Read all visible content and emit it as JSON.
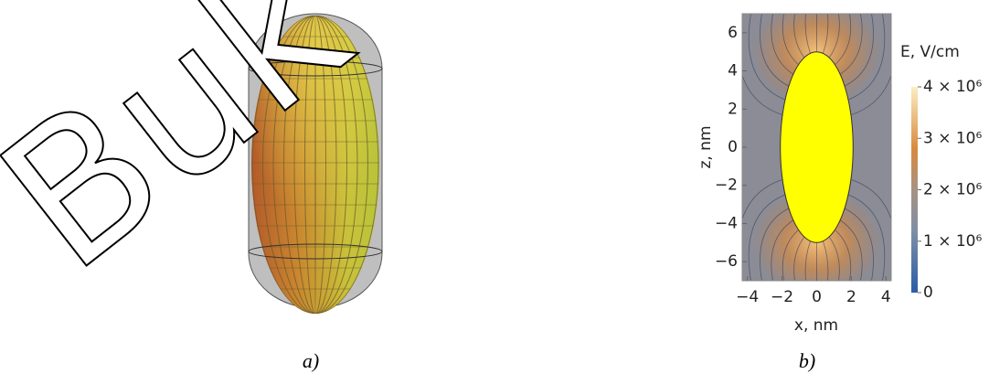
{
  "watermark": "Buk",
  "panels": {
    "a": "a)",
    "b": "b)"
  },
  "chart_data": {
    "type": "density",
    "x_label": "x, nm",
    "y_label": "z, nm",
    "xlim": [
      -4.3,
      4.3
    ],
    "ylim": [
      -7,
      7
    ],
    "xticks": [
      {
        "value": -4,
        "label": "−4"
      },
      {
        "value": -2,
        "label": "−2"
      },
      0,
      2,
      4
    ],
    "yticks": [
      {
        "value": -6,
        "label": "−6"
      },
      {
        "value": -4,
        "label": "−4"
      },
      {
        "value": -2,
        "label": "−2"
      },
      0,
      2,
      4,
      6
    ],
    "inclusion": {
      "semi_x": 2.1,
      "semi_z": 5,
      "color": "#ffff00"
    },
    "colorbar": {
      "label": "E, V/cm",
      "lim": [
        0,
        4000000
      ],
      "ticks": [
        0,
        {
          "value": 1000000,
          "label": "1 × 10⁶"
        },
        {
          "value": 2000000,
          "label": "2 × 10⁶"
        },
        {
          "value": 3000000,
          "label": "3 × 10⁶"
        },
        {
          "value": 4000000,
          "label": "4 × 10⁶"
        }
      ]
    }
  }
}
